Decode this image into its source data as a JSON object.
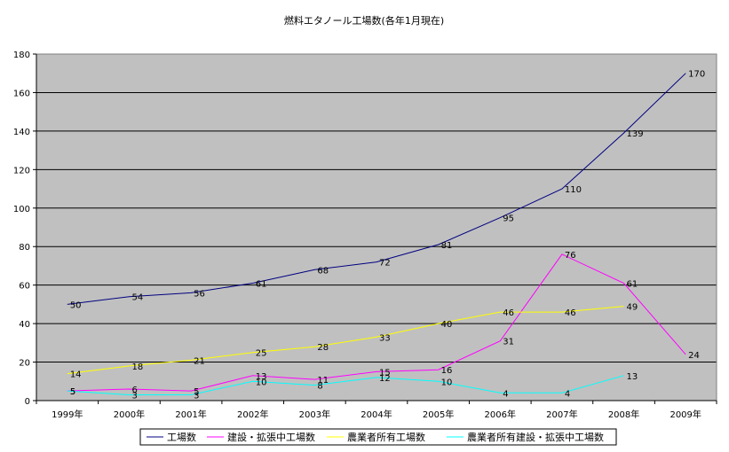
{
  "chart_data": {
    "type": "line",
    "title": "燃料エタノール工場数(各年1月現在)",
    "xlabel": "",
    "ylabel": "",
    "categories": [
      "1999年",
      "2000年",
      "2001年",
      "2002年",
      "2003年",
      "2004年",
      "2005年",
      "2006年",
      "2007年",
      "2008年",
      "2009年"
    ],
    "ylim": [
      0,
      180
    ],
    "yticks": [
      "0",
      "20",
      "40",
      "60",
      "80",
      "100",
      "120",
      "140",
      "160",
      "180"
    ],
    "grid": true,
    "legend": "bottom",
    "plot_background": "#c0c0c0",
    "series": [
      {
        "name": "工場数",
        "color": "#000080",
        "values": [
          50,
          54,
          56,
          61,
          68,
          72,
          81,
          95,
          110,
          139,
          170
        ]
      },
      {
        "name": "建設・拡張中工場数",
        "color": "#ff00ff",
        "values": [
          5,
          6,
          5,
          13,
          11,
          15,
          16,
          31,
          76,
          61,
          24
        ]
      },
      {
        "name": "農業者所有工場数",
        "color": "#ffff00",
        "values": [
          14,
          18,
          21,
          25,
          28,
          33,
          40,
          46,
          46,
          49,
          null
        ]
      },
      {
        "name": "農業者所有建設・拡張中工場数",
        "color": "#00ffff",
        "values": [
          5,
          3,
          3,
          10,
          8,
          12,
          10,
          4,
          4,
          13,
          null
        ]
      }
    ]
  }
}
